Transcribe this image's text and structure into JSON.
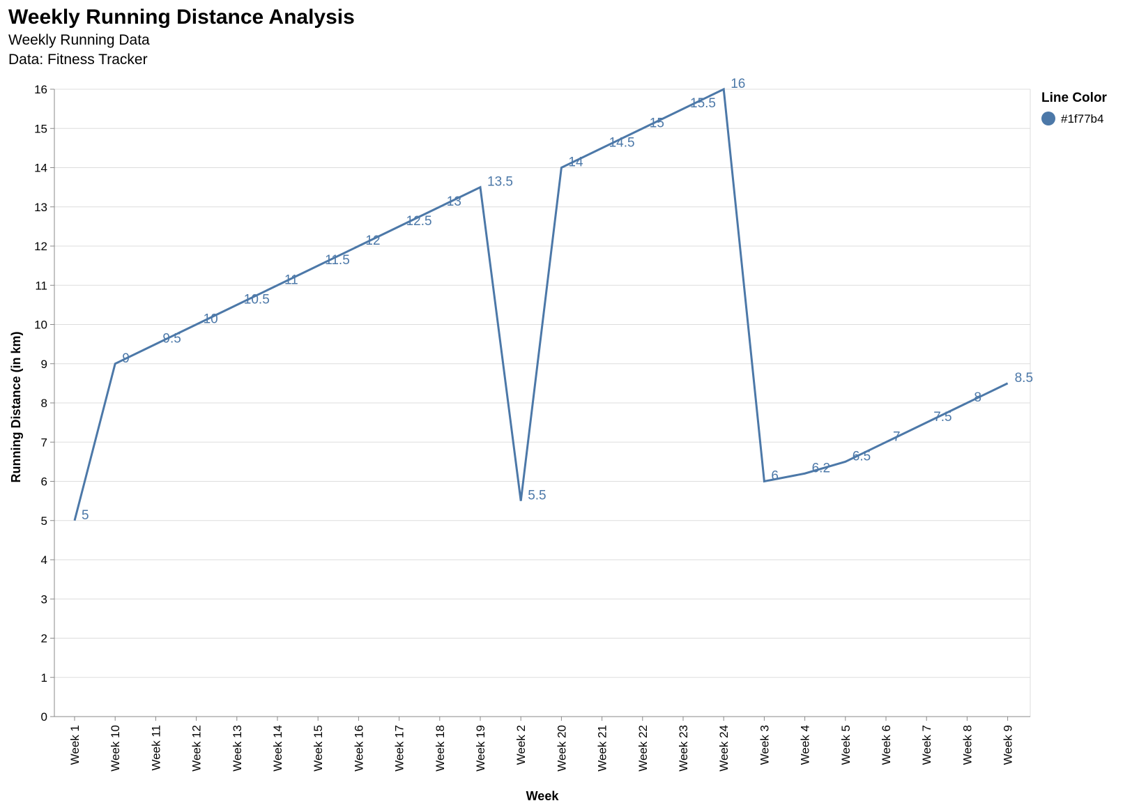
{
  "chart_data": {
    "type": "line",
    "title": "Weekly Running Distance Analysis",
    "subtitle": [
      "Weekly Running Data",
      "Data: Fitness Tracker"
    ],
    "xlabel": "Week",
    "ylabel": "Running Distance (in km)",
    "ylim": [
      0,
      16
    ],
    "yticks": [
      0,
      1,
      2,
      3,
      4,
      5,
      6,
      7,
      8,
      9,
      10,
      11,
      12,
      13,
      14,
      15,
      16
    ],
    "grid": true,
    "categories": [
      "Week 1",
      "Week 10",
      "Week 11",
      "Week 12",
      "Week 13",
      "Week 14",
      "Week 15",
      "Week 16",
      "Week 17",
      "Week 18",
      "Week 19",
      "Week 2",
      "Week 20",
      "Week 21",
      "Week 22",
      "Week 23",
      "Week 24",
      "Week 3",
      "Week 4",
      "Week 5",
      "Week 6",
      "Week 7",
      "Week 8",
      "Week 9"
    ],
    "series": [
      {
        "values": [
          5,
          9,
          9.5,
          10,
          10.5,
          11,
          11.5,
          12,
          12.5,
          13,
          13.5,
          5.5,
          14,
          14.5,
          15,
          15.5,
          16,
          6,
          6.2,
          6.5,
          7,
          7.5,
          8,
          8.5
        ],
        "labels": [
          "5",
          "9",
          "9.5",
          "10",
          "10.5",
          "11",
          "11.5",
          "12",
          "12.5",
          "13",
          "13.5",
          "5.5",
          "14",
          "14.5",
          "15",
          "15.5",
          "16",
          "6",
          "6.2",
          "6.5",
          "7",
          "7.5",
          "8",
          "8.5"
        ],
        "color": "#4c78a8"
      }
    ],
    "legend": {
      "title": "Line Color",
      "entries": [
        {
          "label": "#1f77b4",
          "color": "#4c78a8"
        }
      ],
      "position": "right"
    }
  }
}
